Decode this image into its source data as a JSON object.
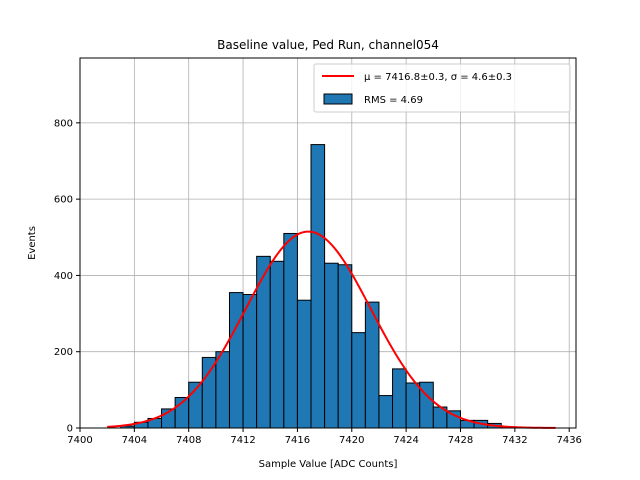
{
  "chart_data": {
    "type": "histogram",
    "title": "Baseline value, Ped Run, channel054",
    "xlabel": "Sample Value [ADC Counts]",
    "ylabel": "Events",
    "xlim": [
      7400,
      7436.5
    ],
    "ylim": [
      0,
      970
    ],
    "xticks": [
      7400,
      7404,
      7408,
      7412,
      7416,
      7420,
      7424,
      7428,
      7432,
      7436
    ],
    "yticks": [
      0,
      200,
      400,
      600,
      800
    ],
    "grid": true,
    "legend_position": "top-right",
    "histogram": {
      "name": "RMS = 4.69",
      "color": "#1f77b4",
      "edge_color": "#000000",
      "bin_width": 1,
      "bins": [
        {
          "x0": 7403,
          "count": 5
        },
        {
          "x0": 7404,
          "count": 15
        },
        {
          "x0": 7405,
          "count": 25
        },
        {
          "x0": 7406,
          "count": 50
        },
        {
          "x0": 7407,
          "count": 80
        },
        {
          "x0": 7408,
          "count": 120
        },
        {
          "x0": 7409,
          "count": 185
        },
        {
          "x0": 7410,
          "count": 200
        },
        {
          "x0": 7411,
          "count": 355
        },
        {
          "x0": 7412,
          "count": 350
        },
        {
          "x0": 7413,
          "count": 450
        },
        {
          "x0": 7414,
          "count": 437
        },
        {
          "x0": 7415,
          "count": 510
        },
        {
          "x0": 7416,
          "count": 335
        },
        {
          "x0": 7417,
          "count": 743
        },
        {
          "x0": 7418,
          "count": 432
        },
        {
          "x0": 7419,
          "count": 428
        },
        {
          "x0": 7420,
          "count": 250
        },
        {
          "x0": 7421,
          "count": 330
        },
        {
          "x0": 7422,
          "count": 85
        },
        {
          "x0": 7423,
          "count": 155
        },
        {
          "x0": 7424,
          "count": 118
        },
        {
          "x0": 7425,
          "count": 120
        },
        {
          "x0": 7426,
          "count": 55
        },
        {
          "x0": 7427,
          "count": 45
        },
        {
          "x0": 7428,
          "count": 20
        },
        {
          "x0": 7429,
          "count": 20
        },
        {
          "x0": 7430,
          "count": 12
        },
        {
          "x0": 7431,
          "count": 3
        }
      ]
    },
    "fit": {
      "type": "gaussian",
      "color": "#ff0000",
      "mu": 7416.8,
      "sigma": 4.6,
      "amplitude": 515,
      "x_start": 7402,
      "x_end": 7435,
      "legend_prefix": "μ = 7416.8±0.3, σ = 4.6±0.3",
      "legend_label": "$\\mu = 7416.8{\\pm}0.3$, $\\sigma = 4.6{\\pm}0.3$"
    }
  }
}
